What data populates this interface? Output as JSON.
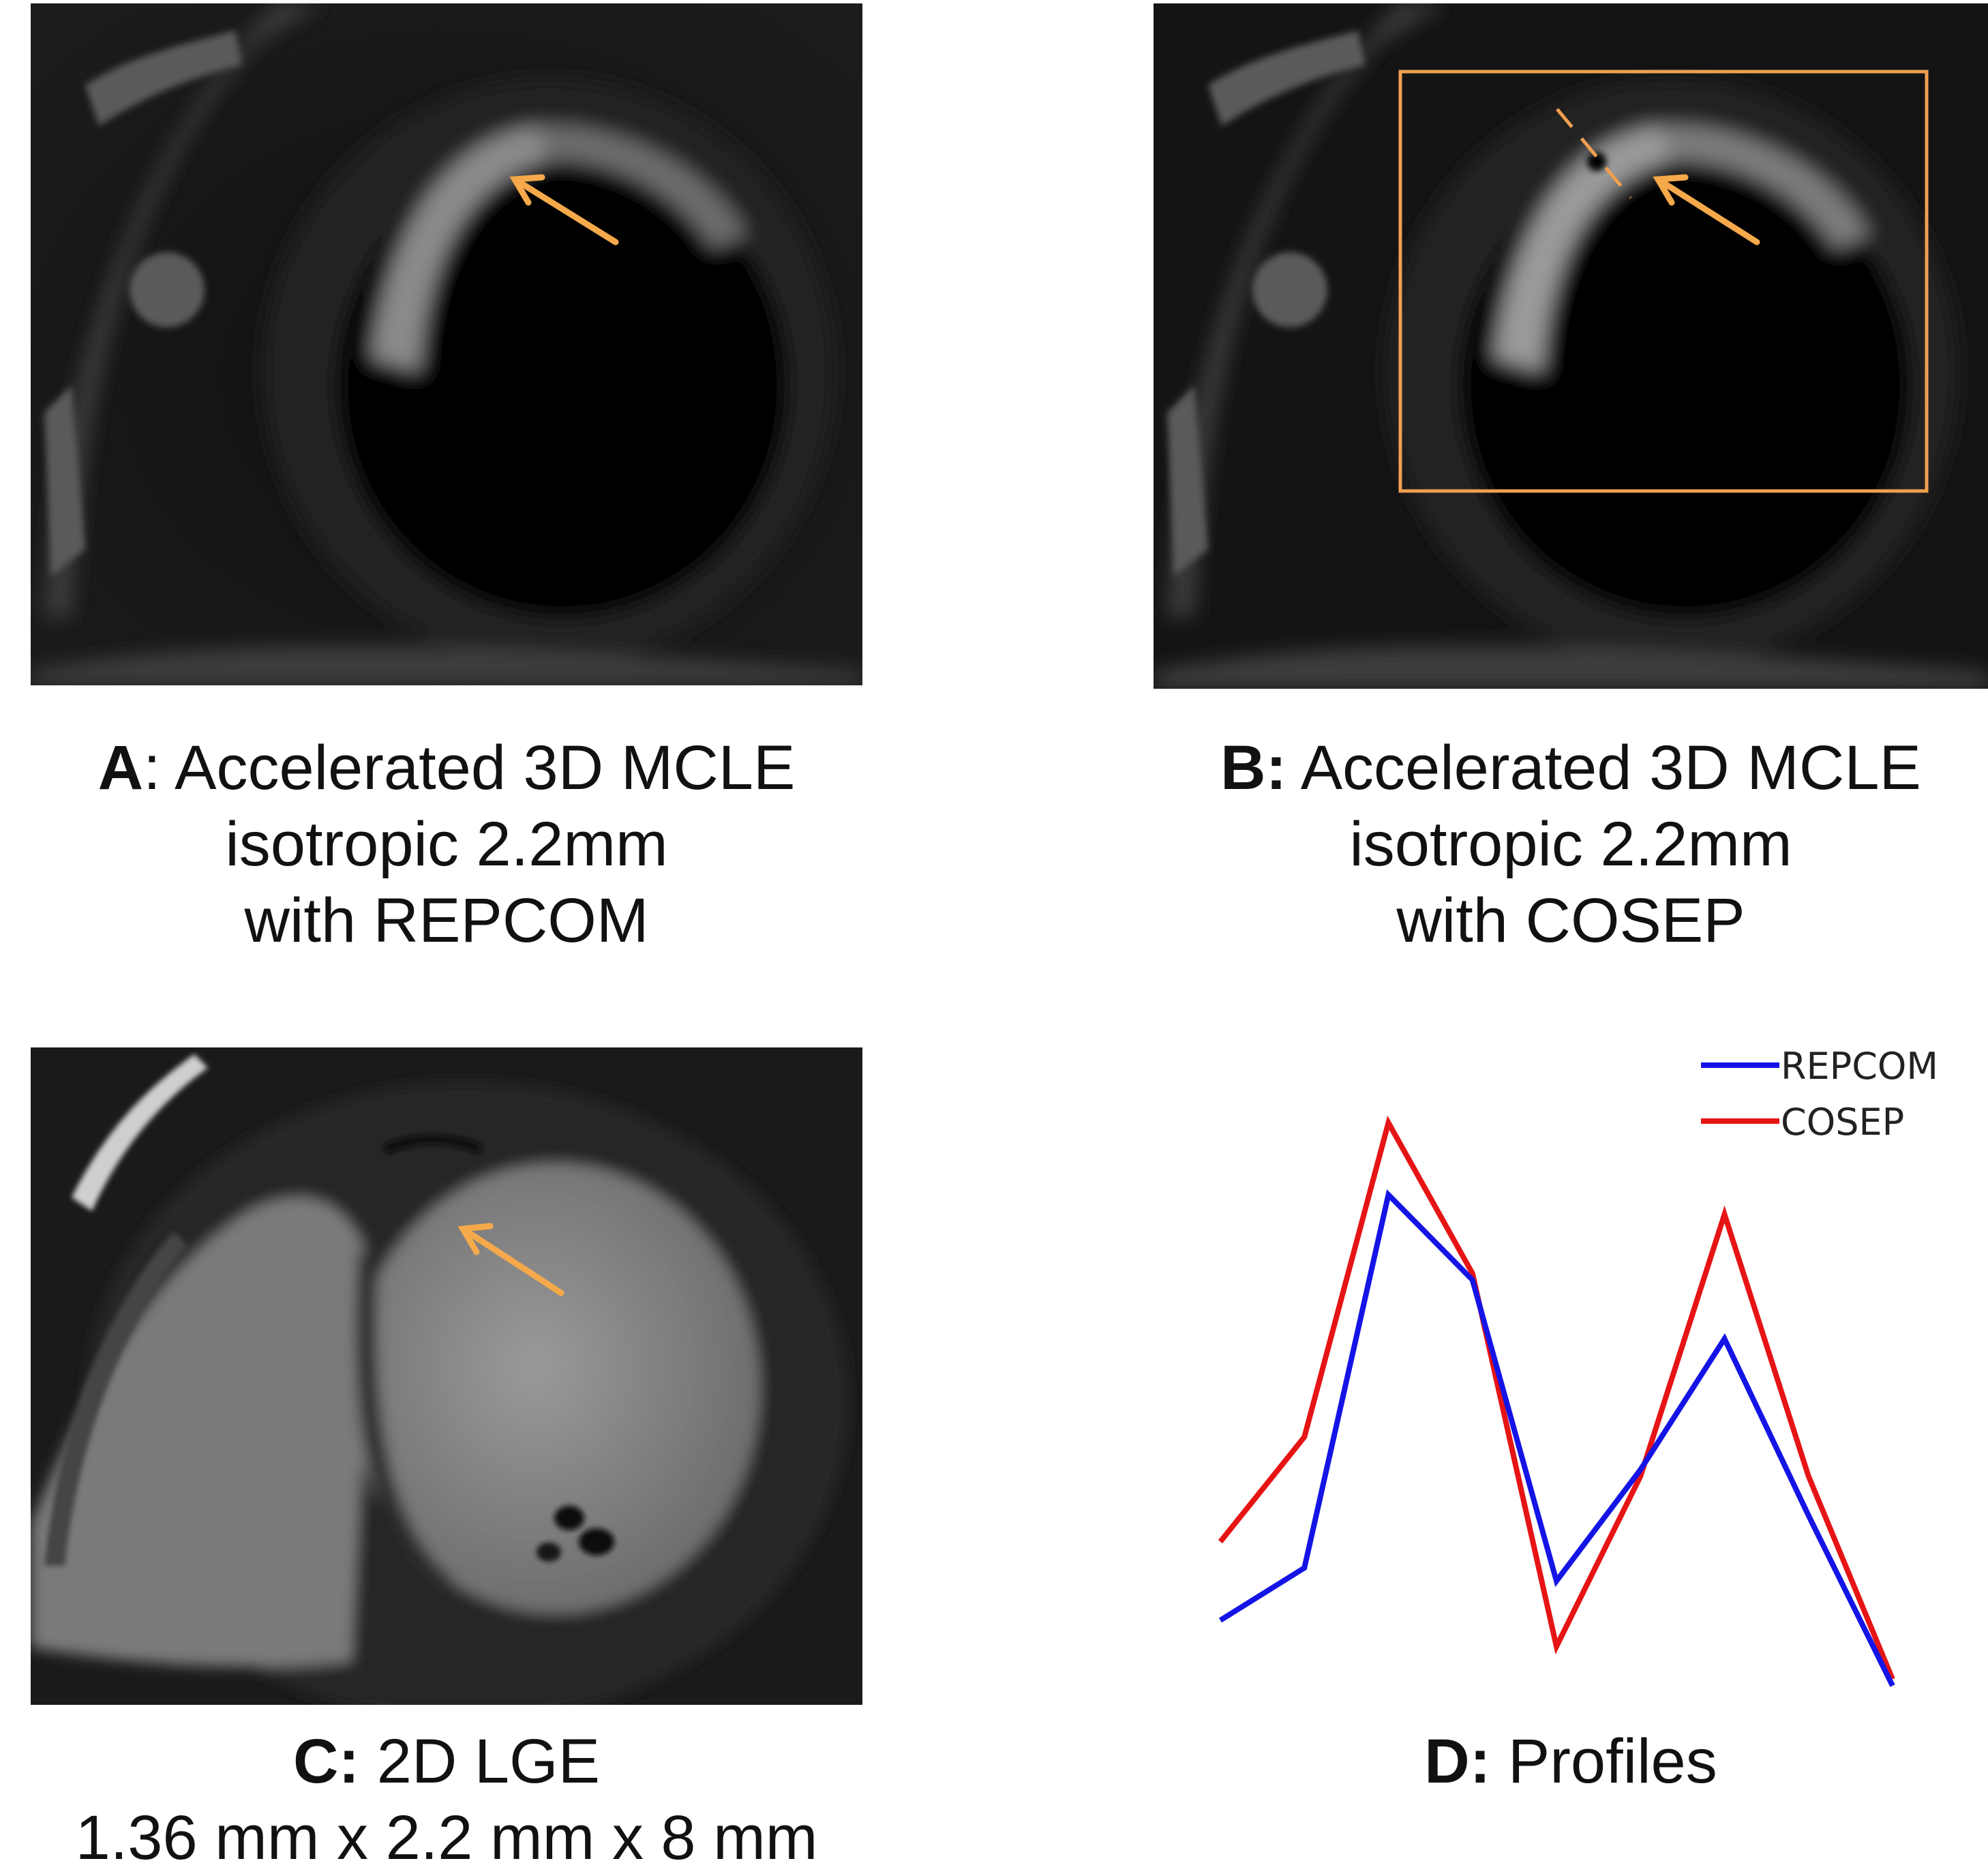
{
  "panels": {
    "a": {
      "letter": "A",
      "sep": ": ",
      "lines": [
        "Accelerated 3D MCLE",
        "isotropic 2.2mm",
        "with REPCOM"
      ]
    },
    "b": {
      "letter": "B:",
      "sep": " ",
      "lines": [
        "Accelerated 3D MCLE",
        "isotropic 2.2mm",
        "with COSEP"
      ]
    },
    "c": {
      "letter": "C:",
      "sep": " ",
      "lines": [
        "2D LGE",
        "1.36 mm x 2.2 mm x 8 mm"
      ]
    },
    "d": {
      "letter": "D:",
      "sep": " ",
      "lines": [
        "Profiles"
      ]
    }
  },
  "colors": {
    "arrow": "#f5a94a",
    "roi_box": "#f0a050",
    "repcom": "#1414e6",
    "cosep": "#e61414"
  },
  "chart_data": {
    "type": "line",
    "title": "",
    "xlabel": "",
    "ylabel": "",
    "x": [
      1,
      2,
      3,
      4,
      5,
      6,
      7,
      8,
      9
    ],
    "legend_position": "top-right",
    "grid": false,
    "ylim": [
      0,
      100
    ],
    "series": [
      {
        "name": "REPCOM",
        "color": "#1414e6",
        "values": [
          15,
          23,
          80,
          67,
          21,
          38,
          58,
          31,
          5
        ]
      },
      {
        "name": "COSEP",
        "color": "#e61414",
        "values": [
          27,
          43,
          91,
          68,
          11,
          37,
          77,
          37,
          6
        ]
      }
    ]
  }
}
